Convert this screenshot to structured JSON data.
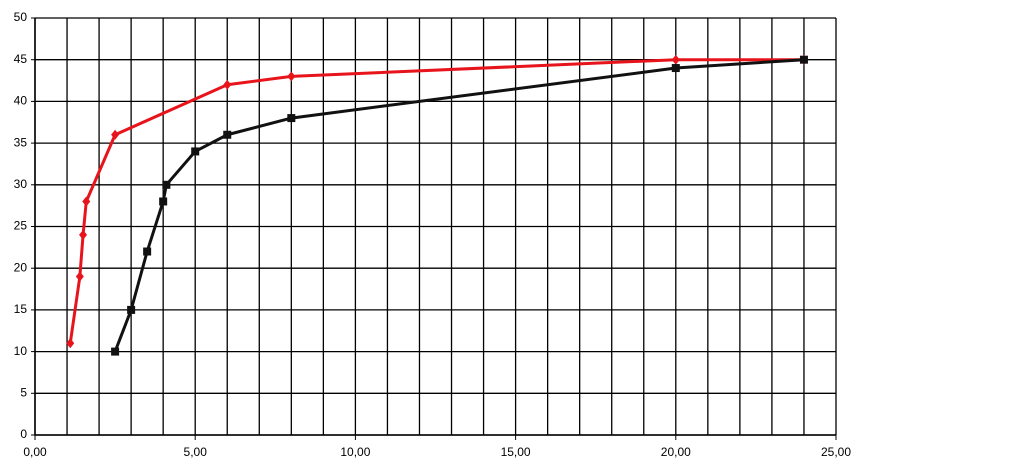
{
  "chart_data": {
    "type": "line",
    "xlim": [
      0,
      25
    ],
    "xticks": [
      {
        "value": 0,
        "label": "0,00"
      },
      {
        "value": 5,
        "label": "5,00"
      },
      {
        "value": 10,
        "label": "10,00"
      },
      {
        "value": 15,
        "label": "15,00"
      },
      {
        "value": 20,
        "label": "20,00"
      },
      {
        "value": 25,
        "label": "25,00"
      }
    ],
    "ylim": [
      0,
      50
    ],
    "yticks": [
      0,
      5,
      10,
      15,
      20,
      25,
      30,
      35,
      40,
      45,
      50
    ],
    "grid": true,
    "series": [
      {
        "color": "#e8141b",
        "marker": "diamond",
        "x": [
          1.1,
          1.4,
          1.5,
          1.6,
          2.5,
          6,
          8,
          20,
          24
        ],
        "values": [
          11,
          19,
          24,
          28,
          36,
          42,
          43,
          45,
          45
        ]
      },
      {
        "color": "#111111",
        "marker": "square",
        "x": [
          2.5,
          3,
          3.5,
          4,
          4.1,
          5,
          6,
          8,
          20,
          24
        ],
        "values": [
          10,
          15,
          22,
          28,
          30,
          34,
          36,
          38,
          44,
          45
        ]
      }
    ]
  }
}
